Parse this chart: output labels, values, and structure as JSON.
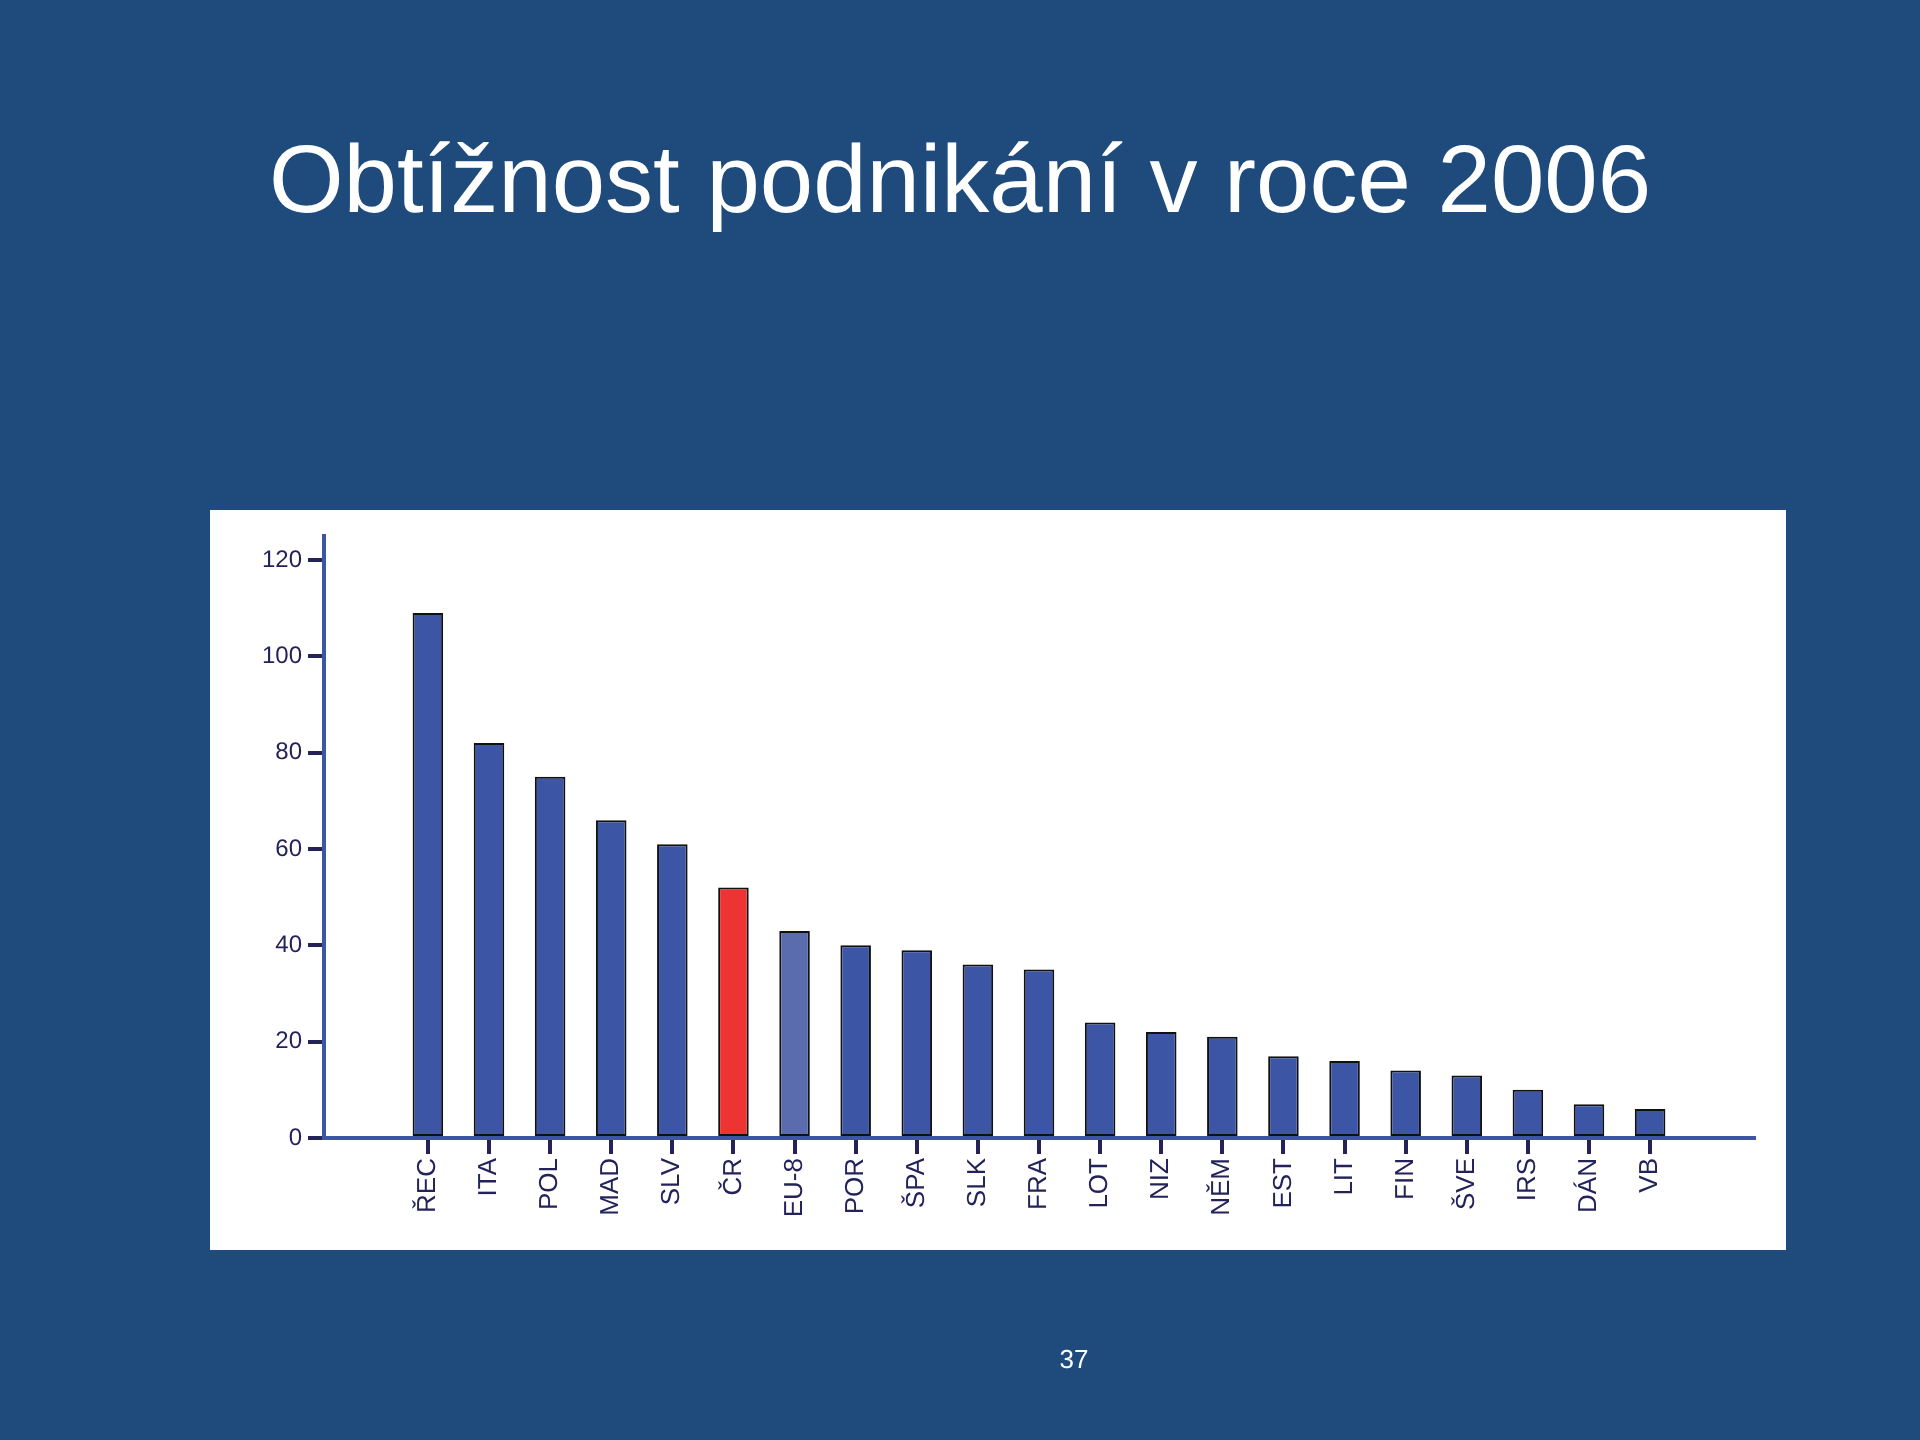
{
  "chart_data": {
    "type": "bar",
    "title": "Obtížnost podnikání v roce 2006",
    "categories": [
      "ŘEC",
      "ITA",
      "POL",
      "MAD",
      "SLV",
      "ČR",
      "EU-8",
      "POR",
      "ŠPA",
      "SLK",
      "FRA",
      "LOT",
      "NIZ",
      "NĚM",
      "EST",
      "LIT",
      "FIN",
      "ŠVE",
      "IRS",
      "DÁN",
      "VB"
    ],
    "values": [
      109,
      82,
      75,
      66,
      61,
      52,
      43,
      40,
      39,
      36,
      35,
      24,
      22,
      21,
      17,
      16,
      14,
      13,
      10,
      7,
      6
    ],
    "colors": [
      "#3d55a5",
      "#3d55a5",
      "#3d55a5",
      "#3d55a5",
      "#3d55a5",
      "#ee3333",
      "#5a6cae",
      "#3d55a5",
      "#3d55a5",
      "#3d55a5",
      "#3d55a5",
      "#3d55a5",
      "#3d55a5",
      "#3d55a5",
      "#3d55a5",
      "#3d55a5",
      "#3d55a5",
      "#3d55a5",
      "#3d55a5",
      "#3d55a5",
      "#3d55a5"
    ],
    "ylim": [
      0,
      125
    ],
    "yticks": [
      0,
      20,
      40,
      60,
      80,
      100,
      120
    ],
    "annotations": [
      "37"
    ]
  }
}
